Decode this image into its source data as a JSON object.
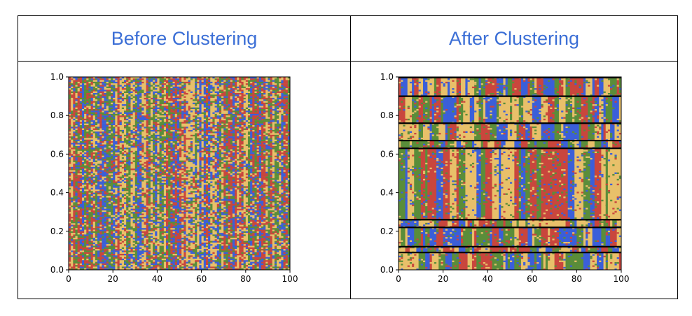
{
  "headers": {
    "left": "Before Clustering",
    "right": "After Clustering"
  },
  "chart_data": [
    {
      "type": "heatmap",
      "title": "Before Clustering",
      "xlim": [
        0,
        100
      ],
      "ylim": [
        0.0,
        1.0
      ],
      "x_ticks": [
        "0",
        "20",
        "40",
        "60",
        "80",
        "100"
      ],
      "y_ticks": [
        "0.0",
        "0.2",
        "0.4",
        "0.6",
        "0.8",
        "1.0"
      ],
      "colors": [
        "#3b5fd9",
        "#e8c06a",
        "#c9463d",
        "#5a8d3a"
      ],
      "cluster_boundaries": []
    },
    {
      "type": "heatmap",
      "title": "After Clustering",
      "xlim": [
        0,
        100
      ],
      "ylim": [
        0.0,
        1.0
      ],
      "x_ticks": [
        "0",
        "20",
        "40",
        "60",
        "80",
        "100"
      ],
      "y_ticks": [
        "0.0",
        "0.2",
        "0.4",
        "0.6",
        "0.8",
        "1.0"
      ],
      "colors": [
        "#3b5fd9",
        "#e8c06a",
        "#c9463d",
        "#5a8d3a"
      ],
      "cluster_boundaries": [
        0.09,
        0.12,
        0.22,
        0.26,
        0.63,
        0.67,
        0.76,
        0.9
      ]
    }
  ]
}
